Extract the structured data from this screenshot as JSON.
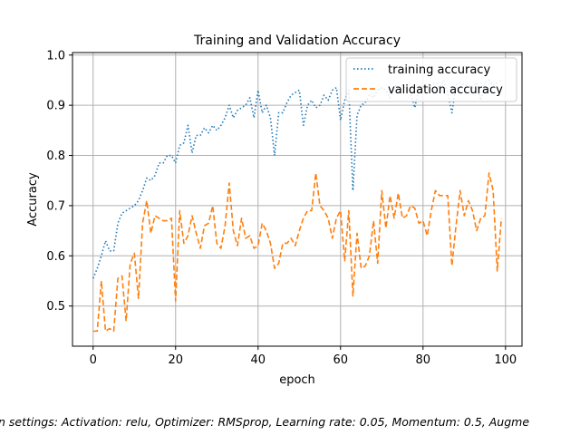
{
  "chart_data": {
    "type": "line",
    "title": "Training and Validation Accuracy",
    "xlabel": "epoch",
    "ylabel": "Accuracy",
    "xlim": [
      -5,
      104
    ],
    "ylim": [
      0.42,
      1.005
    ],
    "xticks": [
      0,
      20,
      40,
      60,
      80,
      100
    ],
    "yticks": [
      0.5,
      0.6,
      0.7,
      0.8,
      0.9,
      1.0
    ],
    "xtick_labels": [
      "0",
      "20",
      "40",
      "60",
      "80",
      "100"
    ],
    "ytick_labels": [
      "0.5",
      "0.6",
      "0.7",
      "0.8",
      "0.9",
      "1.0"
    ],
    "grid": true,
    "legend_position": "top-right",
    "caption": "n settings: Activation: relu, Optimizer: RMSprop, Learning rate: 0.05, Momentum: 0.5, Augme",
    "series": [
      {
        "name": "training accuracy",
        "color": "#1f77b4",
        "linestyle": "dotted",
        "x": [
          0,
          1,
          2,
          3,
          4,
          5,
          6,
          7,
          8,
          9,
          10,
          11,
          12,
          13,
          14,
          15,
          16,
          17,
          18,
          19,
          20,
          21,
          22,
          23,
          24,
          25,
          26,
          27,
          28,
          29,
          30,
          31,
          32,
          33,
          34,
          35,
          36,
          37,
          38,
          39,
          40,
          41,
          42,
          43,
          44,
          45,
          46,
          47,
          48,
          49,
          50,
          51,
          52,
          53,
          54,
          55,
          56,
          57,
          58,
          59,
          60,
          61,
          62,
          63,
          64,
          65,
          66,
          67,
          68,
          69,
          70,
          71,
          72,
          73,
          74,
          75,
          76,
          77,
          78,
          79,
          80,
          81,
          82,
          83,
          84,
          85,
          86,
          87,
          88,
          89,
          90,
          91,
          92,
          93,
          94,
          95,
          96,
          97,
          98,
          99
        ],
        "values": [
          0.555,
          0.575,
          0.6,
          0.63,
          0.61,
          0.61,
          0.665,
          0.685,
          0.69,
          0.695,
          0.7,
          0.71,
          0.73,
          0.755,
          0.75,
          0.76,
          0.785,
          0.785,
          0.8,
          0.8,
          0.785,
          0.82,
          0.825,
          0.86,
          0.805,
          0.84,
          0.84,
          0.855,
          0.845,
          0.86,
          0.85,
          0.86,
          0.875,
          0.9,
          0.875,
          0.89,
          0.895,
          0.9,
          0.915,
          0.875,
          0.93,
          0.885,
          0.9,
          0.875,
          0.8,
          0.885,
          0.885,
          0.905,
          0.92,
          0.925,
          0.93,
          0.86,
          0.9,
          0.91,
          0.895,
          0.9,
          0.92,
          0.91,
          0.93,
          0.935,
          0.87,
          0.91,
          0.93,
          0.73,
          0.88,
          0.9,
          0.905,
          0.92,
          0.915,
          0.93,
          0.935,
          0.93,
          0.915,
          0.94,
          0.935,
          0.94,
          0.93,
          0.925,
          0.895,
          0.935,
          0.94,
          0.935,
          0.94,
          0.945,
          0.935,
          0.95,
          0.925,
          0.885,
          0.94,
          0.945,
          0.94,
          0.94,
          0.935,
          0.945,
          0.91,
          0.945,
          0.95,
          0.94,
          0.945,
          0.95
        ]
      },
      {
        "name": "validation accuracy",
        "color": "#ff7f0e",
        "linestyle": "dashed",
        "x": [
          0,
          1,
          2,
          3,
          4,
          5,
          6,
          7,
          8,
          9,
          10,
          11,
          12,
          13,
          14,
          15,
          16,
          17,
          18,
          19,
          20,
          21,
          22,
          23,
          24,
          25,
          26,
          27,
          28,
          29,
          30,
          31,
          32,
          33,
          34,
          35,
          36,
          37,
          38,
          39,
          40,
          41,
          42,
          43,
          44,
          45,
          46,
          47,
          48,
          49,
          50,
          51,
          52,
          53,
          54,
          55,
          56,
          57,
          58,
          59,
          60,
          61,
          62,
          63,
          64,
          65,
          66,
          67,
          68,
          69,
          70,
          71,
          72,
          73,
          74,
          75,
          76,
          77,
          78,
          79,
          80,
          81,
          82,
          83,
          84,
          85,
          86,
          87,
          88,
          89,
          90,
          91,
          92,
          93,
          94,
          95,
          96,
          97,
          98,
          99
        ],
        "values": [
          0.45,
          0.45,
          0.55,
          0.45,
          0.455,
          0.45,
          0.555,
          0.56,
          0.47,
          0.585,
          0.605,
          0.515,
          0.665,
          0.71,
          0.645,
          0.68,
          0.675,
          0.67,
          0.67,
          0.675,
          0.51,
          0.69,
          0.625,
          0.64,
          0.68,
          0.645,
          0.615,
          0.66,
          0.665,
          0.7,
          0.625,
          0.615,
          0.66,
          0.745,
          0.65,
          0.62,
          0.675,
          0.635,
          0.64,
          0.615,
          0.62,
          0.665,
          0.65,
          0.625,
          0.575,
          0.585,
          0.625,
          0.625,
          0.635,
          0.62,
          0.65,
          0.675,
          0.69,
          0.69,
          0.765,
          0.7,
          0.69,
          0.675,
          0.635,
          0.675,
          0.69,
          0.59,
          0.69,
          0.52,
          0.645,
          0.575,
          0.58,
          0.6,
          0.67,
          0.585,
          0.73,
          0.655,
          0.72,
          0.675,
          0.725,
          0.675,
          0.68,
          0.7,
          0.695,
          0.665,
          0.67,
          0.64,
          0.69,
          0.73,
          0.72,
          0.72,
          0.72,
          0.58,
          0.66,
          0.73,
          0.68,
          0.71,
          0.69,
          0.65,
          0.675,
          0.68,
          0.765,
          0.73,
          0.57,
          0.675
        ]
      }
    ]
  }
}
